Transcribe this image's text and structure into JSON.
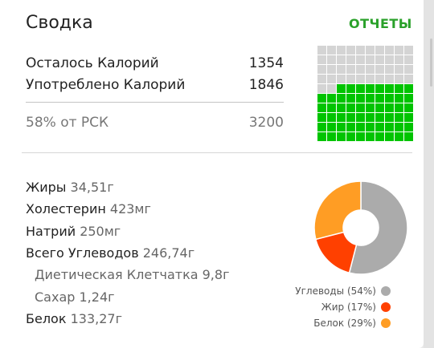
{
  "header": {
    "title": "Сводка",
    "reports_link": "ОТЧЕТЫ"
  },
  "calories": {
    "remaining_label": "Осталось Калорий",
    "remaining_value": "1354",
    "consumed_label": "Употреблено Калорий",
    "consumed_value": "1846",
    "percent_label": "58% от РСК",
    "goal_value": "3200"
  },
  "waffle": {
    "total_cells": 100,
    "filled_cells": 58,
    "filled_color": "#00c400",
    "empty_color": "#d4d4d4"
  },
  "nutrients": [
    {
      "label": "Жиры",
      "value": "34,51г",
      "sub": false
    },
    {
      "label": "Холестерин",
      "value": "423мг",
      "sub": false
    },
    {
      "label": "Натрий",
      "value": "250мг",
      "sub": false
    },
    {
      "label": "Всего Углеводов",
      "value": "246,74г",
      "sub": false
    },
    {
      "label": "Диетическая Клетчатка",
      "value": "9,8г",
      "sub": true
    },
    {
      "label": "Сахар",
      "value": "1,24г",
      "sub": true
    },
    {
      "label": "Белок",
      "value": "133,27г",
      "sub": false
    }
  ],
  "chart_data": {
    "type": "pie",
    "donut": true,
    "slices": [
      {
        "name": "Углеводы",
        "value": 54,
        "label": "Углеводы (54%)",
        "color": "#ababab"
      },
      {
        "name": "Жир",
        "value": 17,
        "label": "Жир (17%)",
        "color": "#ff4000"
      },
      {
        "name": "Белок",
        "value": 29,
        "label": "Белок (29%)",
        "color": "#ff9d24"
      }
    ]
  }
}
